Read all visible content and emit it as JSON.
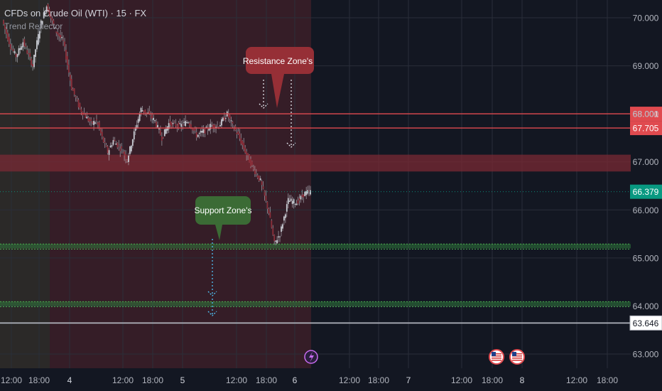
{
  "legend": {
    "title": "CFDs on Crude Oil (WTI) · 15 · FX",
    "indicator": "Trend Reflector"
  },
  "colors": {
    "background": "#131722",
    "session_shade": "#3c1f28",
    "resistance": "#e04a4f",
    "resistance_zone": "#7a2a34",
    "support": "#2f7a3d",
    "current_price": "#089981",
    "reference_line": "#b2b5be",
    "callout_resistance": "#962f36",
    "callout_support": "#3b6b35",
    "wick": "#b2b5be",
    "body_up": "#c8cbd2",
    "body_down": "#8c2f3a"
  },
  "chart_data": {
    "type": "line",
    "series_type": "candlestick (15-minute)",
    "x_tick_labels": [
      "12:00",
      "18:00",
      "4",
      "12:00",
      "18:00",
      "5",
      "12:00",
      "18:00",
      "6",
      "12:00",
      "18:00",
      "7",
      "12:00",
      "18:00",
      "8",
      "12:00",
      "18:00"
    ],
    "y_ticks": [
      63.0,
      64.0,
      65.0,
      66.0,
      67.0,
      68.0,
      69.0,
      70.0
    ],
    "y_tick_labels": [
      "63.000",
      "64.000",
      "65.000",
      "66.000",
      "67.000",
      "68.000",
      "69.000",
      "70.000"
    ],
    "ylim": [
      62.6,
      70.35
    ],
    "price_path": {
      "x_index": [
        0,
        6,
        10,
        15,
        22,
        24,
        28,
        32,
        38,
        44,
        50,
        56,
        60,
        64,
        68,
        72,
        76,
        80,
        86,
        90,
        95,
        100,
        105,
        110,
        115,
        120,
        128,
        134,
        140,
        146,
        150,
        156,
        162,
        166,
        170,
        176,
        180,
        186,
        192,
        196,
        200,
        206,
        212,
        218,
        222
      ],
      "price": [
        69.95,
        69.4,
        69.2,
        69.5,
        69.0,
        69.35,
        69.9,
        70.25,
        69.75,
        69.5,
        68.55,
        68.1,
        67.95,
        67.8,
        67.85,
        67.5,
        67.2,
        67.45,
        67.25,
        67.05,
        67.6,
        68.1,
        68.0,
        67.85,
        67.5,
        67.8,
        67.75,
        67.85,
        67.55,
        67.65,
        67.75,
        67.75,
        68.0,
        67.75,
        67.55,
        67.15,
        66.9,
        66.6,
        65.95,
        65.3,
        65.5,
        66.2,
        66.15,
        66.35,
        66.38
      ]
    },
    "last_price": 66.379,
    "horizontal_levels": [
      {
        "price": 68.001,
        "label": "68.001",
        "kind": "resistance"
      },
      {
        "price": 67.705,
        "label": "67.705",
        "kind": "resistance"
      },
      {
        "price": 66.379,
        "label": "66.379",
        "kind": "last price"
      },
      {
        "price": 63.646,
        "label": "63.646",
        "kind": "reference"
      },
      {
        "price": 65.25,
        "kind": "support"
      },
      {
        "price": 64.05,
        "kind": "support"
      }
    ],
    "zones": [
      {
        "kind": "resistance",
        "from": 66.8,
        "to": 67.15
      },
      {
        "kind": "support",
        "from": 65.2,
        "to": 65.29
      },
      {
        "kind": "support",
        "from": 64.0,
        "to": 64.09
      }
    ],
    "annotations": [
      {
        "text": "Resistance Zone's",
        "kind": "resistance"
      },
      {
        "text": "Support Zone's",
        "kind": "support"
      }
    ],
    "event_icons": [
      "lightning-icon",
      "us-flag-icon",
      "us-flag-icon"
    ],
    "grid": true
  }
}
